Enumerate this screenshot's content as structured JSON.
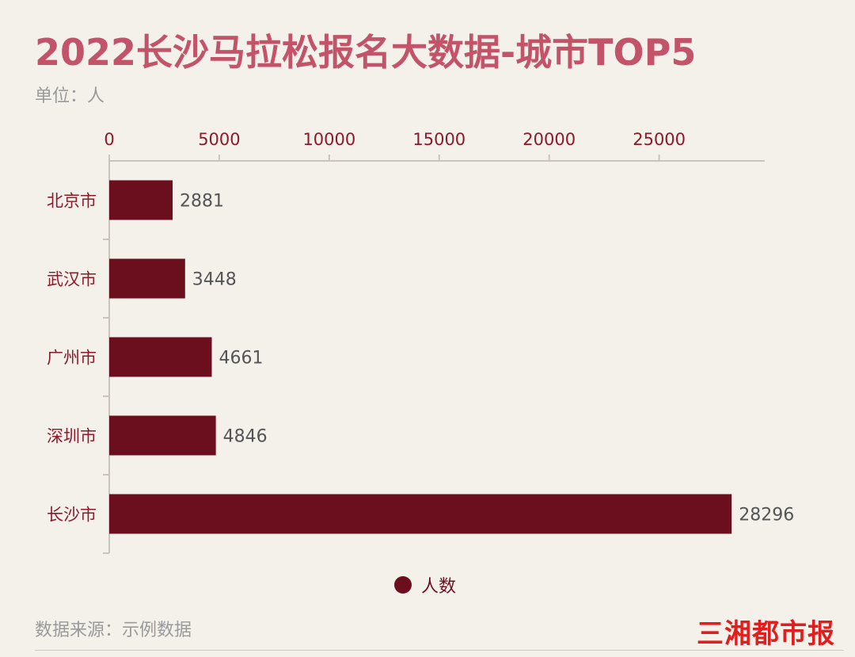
{
  "page": {
    "title": "2022长沙马拉松报名大数据-城市TOP5",
    "unit_label": "单位：人",
    "source_label": "数据来源：示例数据",
    "logo_text": "三湘都市报"
  },
  "colors": {
    "background": "#f4f0ea",
    "title": "#c25368",
    "bar": "#6b0f1f",
    "axis_text": "#8b1a2b",
    "value_text": "#555555",
    "muted_text": "#9a9a9a",
    "logo": "#e01e1e"
  },
  "chart_data": {
    "type": "bar",
    "orientation": "horizontal",
    "categories": [
      "北京市",
      "武汉市",
      "广州市",
      "深圳市",
      "长沙市"
    ],
    "series": [
      {
        "name": "人数",
        "values": [
          2881,
          3448,
          4661,
          4846,
          28296
        ]
      }
    ],
    "xlim": [
      0,
      29800
    ],
    "xticks": [
      0,
      5000,
      10000,
      15000,
      20000,
      25000
    ],
    "xaxis_position": "top",
    "grid": false,
    "legend_position": "bottom-center",
    "title": "2022长沙马拉松报名大数据-城市TOP5",
    "xlabel": "",
    "ylabel": ""
  }
}
